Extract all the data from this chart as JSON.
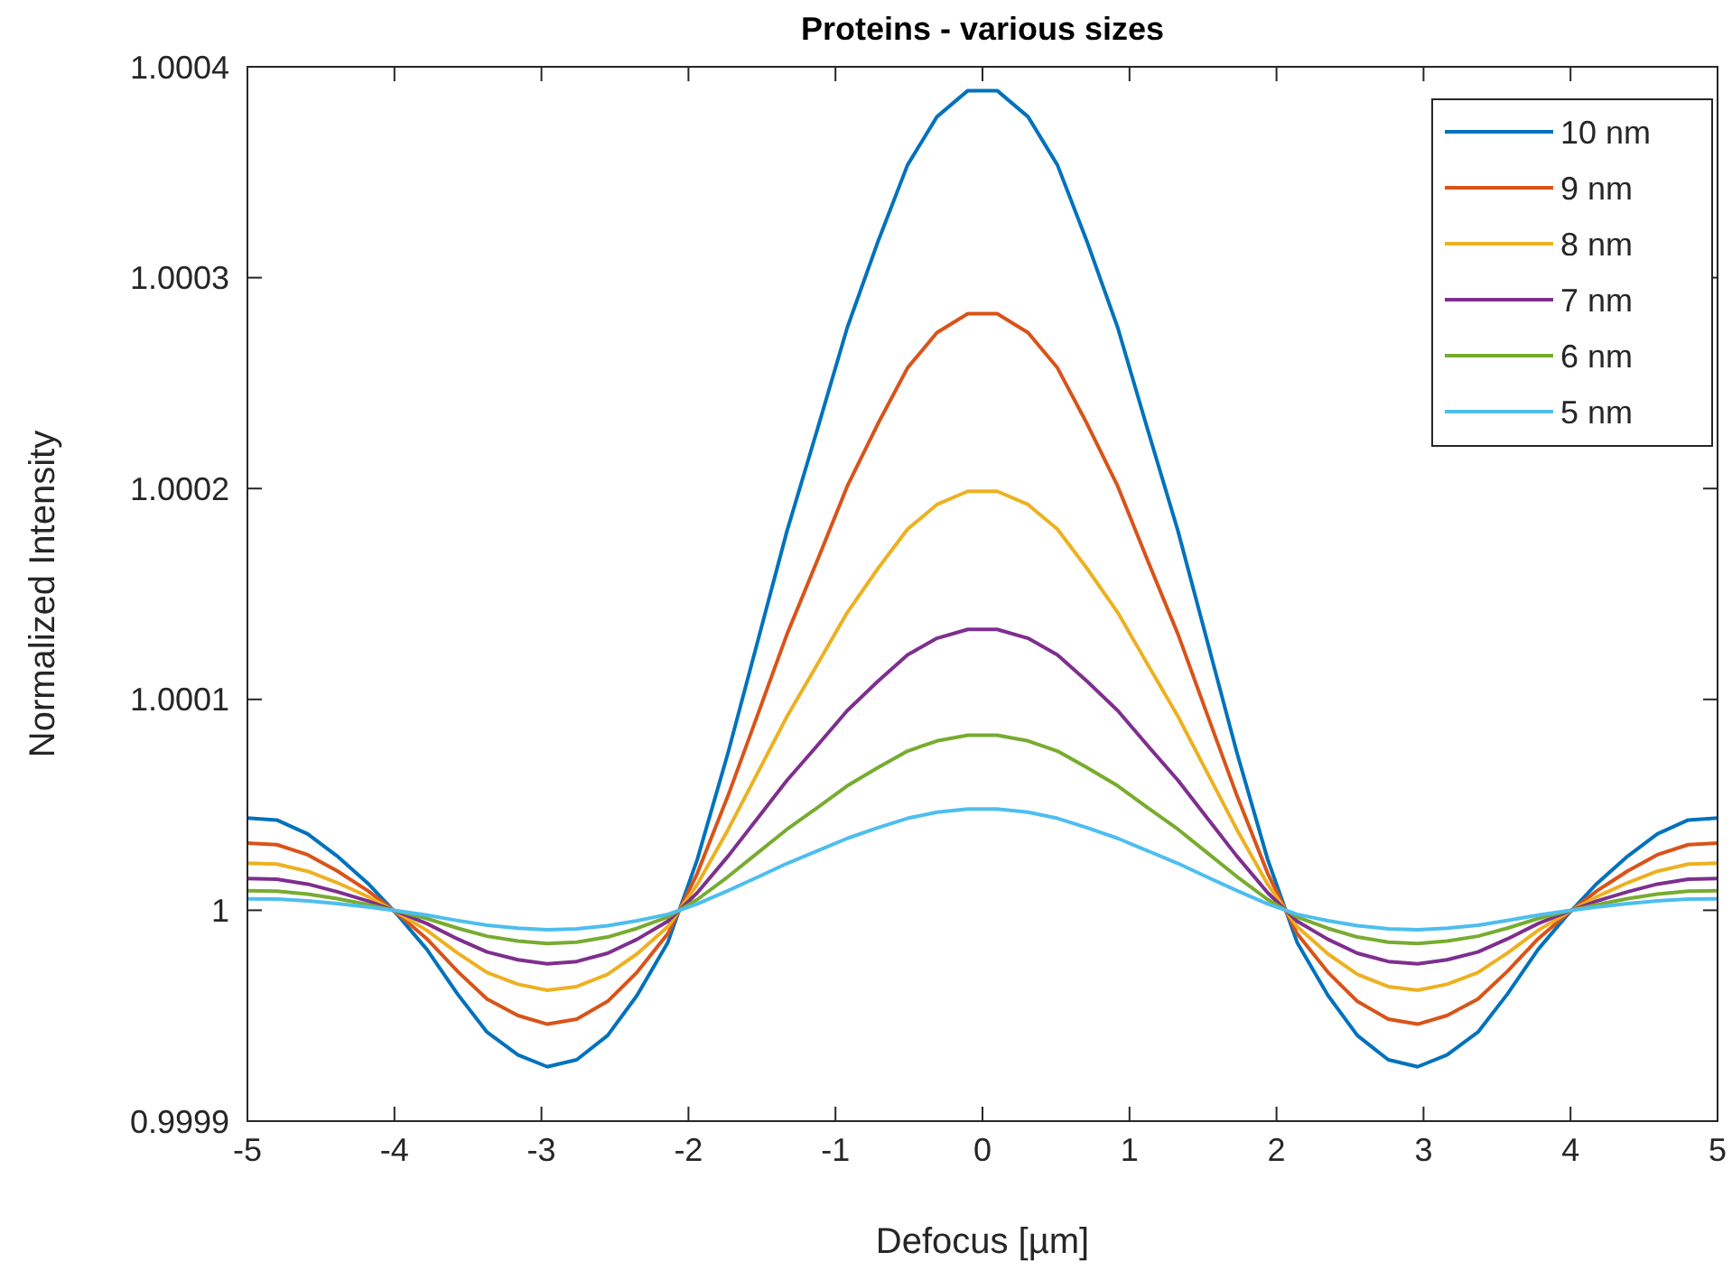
{
  "chart_data": {
    "type": "line",
    "title": "Proteins - various sizes",
    "xlabel": "Defocus [µm]",
    "ylabel": "Normalized Intensity",
    "x": [
      -5,
      -4.8,
      -4.59,
      -4.39,
      -4.18,
      -3.98,
      -3.78,
      -3.57,
      -3.37,
      -3.16,
      -2.96,
      -2.76,
      -2.55,
      -2.35,
      -2.14,
      -1.94,
      -1.73,
      -1.53,
      -1.33,
      -1.12,
      -0.92,
      -0.71,
      -0.51,
      -0.31,
      -0.1,
      0.1,
      0.31,
      0.51,
      0.71,
      0.92,
      1.12,
      1.33,
      1.53,
      1.73,
      1.94,
      2.14,
      2.35,
      2.55,
      2.76,
      2.96,
      3.16,
      3.37,
      3.57,
      3.78,
      3.98,
      4.18,
      4.39,
      4.59,
      4.8,
      5
    ],
    "series": [
      {
        "name": "10 nm",
        "color": "#0072bd",
        "values": [
          1.0000437,
          1.0000428,
          1.0000362,
          1.0000257,
          1.0000127,
          0.9999979,
          0.9999815,
          0.9999602,
          0.9999422,
          0.9999314,
          0.9999258,
          0.9999291,
          0.9999406,
          0.9999596,
          0.9999848,
          1.0000241,
          1.0000749,
          1.0001273,
          1.0001798,
          1.0002288,
          1.0002763,
          1.0003173,
          1.0003534,
          1.0003763,
          1.0003887,
          1.0003887,
          1.0003763,
          1.0003534,
          1.0003173,
          1.0002763,
          1.0002288,
          1.0001798,
          1.0001273,
          1.0000749,
          1.0000241,
          0.9999848,
          0.9999596,
          0.9999406,
          0.9999291,
          0.9999258,
          0.9999314,
          0.9999422,
          0.9999602,
          0.9999815,
          0.9999979,
          1.0000127,
          1.0000257,
          1.0000362,
          1.0000428,
          1.0000437
        ]
      },
      {
        "name": "9 nm",
        "color": "#d95319",
        "values": [
          1.0000318,
          1.0000311,
          1.0000263,
          1.0000187,
          1.0000092,
          0.9999985,
          0.9999865,
          0.999971,
          0.9999579,
          0.9999501,
          0.999946,
          0.9999484,
          0.9999568,
          0.9999706,
          0.9999889,
          1.0000175,
          1.0000545,
          1.0000926,
          1.0001309,
          1.0001665,
          1.0002011,
          1.0002309,
          1.0002572,
          1.0002739,
          1.0002829,
          1.0002829,
          1.0002739,
          1.0002572,
          1.0002309,
          1.0002011,
          1.0001665,
          1.0001309,
          1.0000926,
          1.0000545,
          1.0000175,
          0.9999889,
          0.9999706,
          0.9999568,
          0.9999484,
          0.999946,
          0.9999501,
          0.9999579,
          0.999971,
          0.9999865,
          0.9999985,
          1.0000092,
          1.0000187,
          1.0000263,
          1.0000311,
          1.0000318
        ]
      },
      {
        "name": "8 nm",
        "color": "#edb120",
        "values": [
          1.0000223,
          1.0000219,
          1.0000185,
          1.0000131,
          1.0000065,
          0.9999989,
          0.9999905,
          0.9999797,
          0.9999705,
          0.9999649,
          0.9999621,
          0.9999638,
          0.9999696,
          0.9999793,
          0.9999922,
          1.0000123,
          1.0000383,
          1.0000651,
          1.0000919,
          1.000117,
          1.0001412,
          1.0001622,
          1.0001807,
          1.0001924,
          1.0001987,
          1.0001987,
          1.0001924,
          1.0001807,
          1.0001622,
          1.0001412,
          1.000117,
          1.0000919,
          1.0000651,
          1.0000383,
          1.0000123,
          0.9999922,
          0.9999793,
          0.9999696,
          0.9999638,
          0.9999621,
          0.9999649,
          0.9999705,
          0.9999797,
          0.9999905,
          0.9999989,
          1.0000065,
          1.0000131,
          1.0000185,
          1.0000219,
          1.0000223
        ]
      },
      {
        "name": "7 nm",
        "color": "#7e2f8e",
        "values": [
          1.000015,
          1.0000147,
          1.0000124,
          1.0000088,
          1.0000044,
          0.9999993,
          0.9999937,
          0.9999864,
          0.9999802,
          0.9999765,
          0.9999746,
          0.9999757,
          0.9999796,
          0.9999862,
          0.9999948,
          1.0000083,
          1.0000257,
          1.0000436,
          1.0000616,
          1.0000784,
          1.0000947,
          1.0001087,
          1.0001211,
          1.000129,
          1.0001332,
          1.0001332,
          1.000129,
          1.0001211,
          1.0001087,
          1.0000947,
          1.0000784,
          1.0000616,
          1.0000436,
          1.0000257,
          1.0000083,
          0.9999948,
          0.9999862,
          0.9999796,
          0.9999757,
          0.9999746,
          0.9999765,
          0.9999802,
          0.9999864,
          0.9999937,
          0.9999993,
          1.0000044,
          1.0000088,
          1.0000124,
          1.0000147,
          1.000015
        ]
      },
      {
        "name": "6 nm",
        "color": "#77ac30",
        "values": [
          1.0000093,
          1.0000091,
          1.0000077,
          1.0000055,
          1.0000027,
          0.9999996,
          0.9999961,
          0.9999915,
          0.9999877,
          0.9999854,
          0.9999842,
          0.9999849,
          0.9999873,
          0.9999914,
          0.9999968,
          1.0000051,
          1.000016,
          1.0000272,
          1.0000384,
          1.0000488,
          1.000059,
          1.0000677,
          1.0000755,
          1.0000803,
          1.000083,
          1.000083,
          1.0000803,
          1.0000755,
          1.0000677,
          1.000059,
          1.0000488,
          1.0000384,
          1.0000272,
          1.000016,
          1.0000051,
          0.9999968,
          0.9999914,
          0.9999873,
          0.9999849,
          0.9999842,
          0.9999854,
          0.9999877,
          0.9999915,
          0.9999961,
          0.9999996,
          1.0000027,
          1.0000055,
          1.0000077,
          1.0000091,
          1.0000093
        ]
      },
      {
        "name": "5 nm",
        "color": "#4dbeee",
        "values": [
          1.0000054,
          1.0000053,
          1.0000045,
          1.0000032,
          1.0000016,
          0.9999997,
          0.9999977,
          0.9999951,
          0.9999929,
          0.9999915,
          0.9999908,
          0.9999912,
          0.9999927,
          0.999995,
          0.9999981,
          1.000003,
          1.0000093,
          1.0000157,
          1.0000222,
          1.0000283,
          1.0000341,
          1.0000392,
          1.0000436,
          1.0000465,
          1.000048,
          1.000048,
          1.0000465,
          1.0000436,
          1.0000392,
          1.0000341,
          1.0000283,
          1.0000222,
          1.0000157,
          1.0000093,
          1.000003,
          0.9999981,
          0.999995,
          0.9999927,
          0.9999912,
          0.9999908,
          0.9999915,
          0.9999929,
          0.9999951,
          0.9999977,
          0.9999997,
          1.0000016,
          1.0000032,
          1.0000045,
          1.0000053,
          1.0000054
        ]
      }
    ],
    "xlim": [
      -5,
      5
    ],
    "xticks": [
      -5,
      -4,
      -3,
      -2,
      -1,
      0,
      1,
      2,
      3,
      4,
      5
    ],
    "ylim": [
      0.9999,
      1.0004
    ],
    "yticks": [
      0.9999,
      1,
      1.0001,
      1.0002,
      1.0003,
      1.0004
    ],
    "legend": "top right",
    "line_style": "solid"
  }
}
